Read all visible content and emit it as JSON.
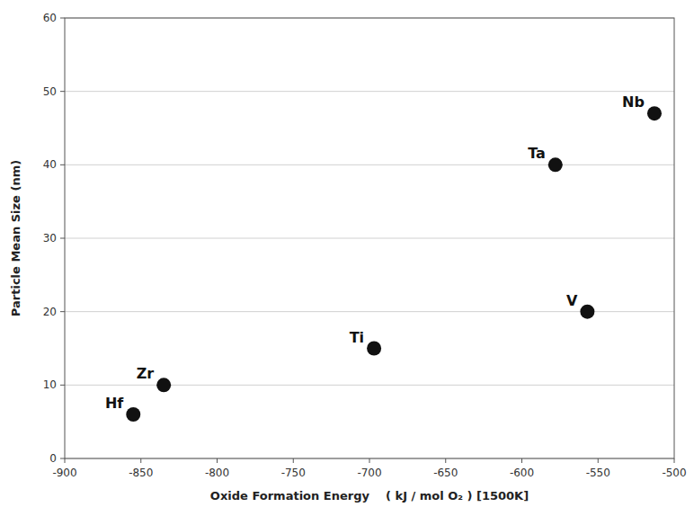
{
  "chart_data": {
    "type": "scatter",
    "x": [
      -855,
      -835,
      -697,
      -578,
      -557,
      -513
    ],
    "values": [
      6,
      10,
      15,
      40,
      20,
      47
    ],
    "labels": [
      "Hf",
      "Zr",
      "Ti",
      "Ta",
      "V",
      "Nb"
    ],
    "color": "#111111",
    "xlim": [
      -900,
      -500
    ],
    "ylim": [
      0,
      60
    ],
    "xticks": [
      -900,
      -850,
      -800,
      -750,
      -700,
      -650,
      -600,
      -550,
      -500
    ],
    "yticks": [
      0,
      10,
      20,
      30,
      40,
      50,
      60
    ],
    "xlabel": "Oxide Formation Energy    ( kJ / mol O₂ ) [1500K]",
    "ylabel": "Particle Mean Size (nm)",
    "grid": true
  }
}
